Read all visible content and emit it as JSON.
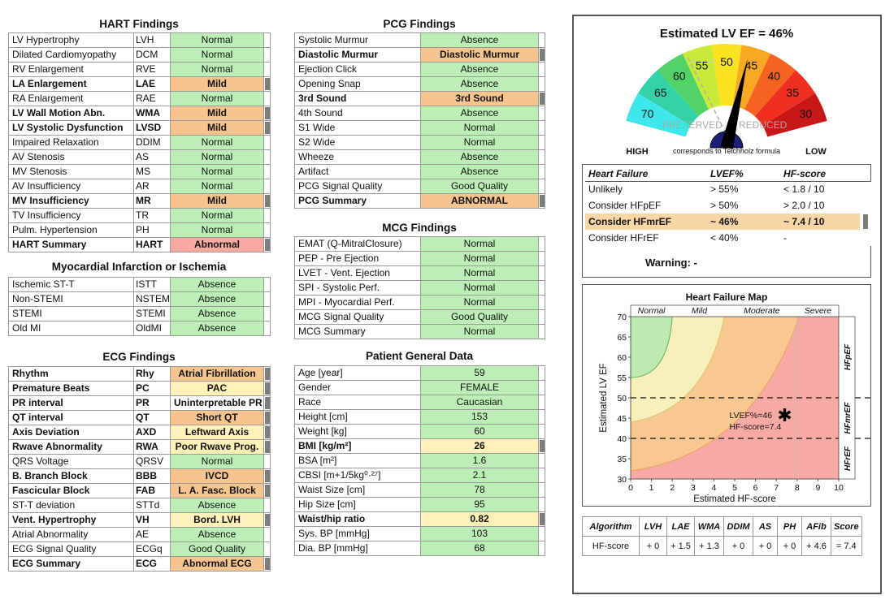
{
  "hart": {
    "title": "HART Findings",
    "rows": [
      {
        "name": "LV Hypertrophy",
        "abbr": "LVH",
        "value": "Normal",
        "status": "normal",
        "flag": false
      },
      {
        "name": "Dilated Cardiomyopathy",
        "abbr": "DCM",
        "value": "Normal",
        "status": "normal",
        "flag": false
      },
      {
        "name": "RV Enlargement",
        "abbr": "RVE",
        "value": "Normal",
        "status": "normal",
        "flag": false
      },
      {
        "name": "LA Enlargement",
        "abbr": "LAE",
        "value": "Mild",
        "status": "abn",
        "flag": true
      },
      {
        "name": "RA Enlargement",
        "abbr": "RAE",
        "value": "Normal",
        "status": "normal",
        "flag": false
      },
      {
        "name": "LV Wall Motion Abn.",
        "abbr": "WMA",
        "value": "Mild",
        "status": "abn",
        "flag": true
      },
      {
        "name": "LV Systolic Dysfunction",
        "abbr": "LVSD",
        "value": "Mild",
        "status": "abn",
        "flag": true
      },
      {
        "name": "Impaired Relaxation",
        "abbr": "DDIM",
        "value": "Normal",
        "status": "normal",
        "flag": false
      },
      {
        "name": "AV Stenosis",
        "abbr": "AS",
        "value": "Normal",
        "status": "normal",
        "flag": false
      },
      {
        "name": "MV Stenosis",
        "abbr": "MS",
        "value": "Normal",
        "status": "normal",
        "flag": false
      },
      {
        "name": "AV Insufficiency",
        "abbr": "AR",
        "value": "Normal",
        "status": "normal",
        "flag": false
      },
      {
        "name": "MV Insufficiency",
        "abbr": "MR",
        "value": "Mild",
        "status": "abn",
        "flag": true
      },
      {
        "name": "TV Insufficiency",
        "abbr": "TR",
        "value": "Normal",
        "status": "normal",
        "flag": false
      },
      {
        "name": "Pulm. Hypertension",
        "abbr": "PH",
        "value": "Normal",
        "status": "normal",
        "flag": false
      },
      {
        "name": "HART Summary",
        "abbr": "HART",
        "value": "Abnormal",
        "status": "red",
        "flag": true
      }
    ]
  },
  "mi": {
    "title": "Myocardial Infarction or Ischemia",
    "rows": [
      {
        "name": "Ischemic ST-T",
        "abbr": "ISTT",
        "value": "Absence",
        "status": "normal",
        "flag": false
      },
      {
        "name": "Non-STEMI",
        "abbr": "NSTEMI",
        "value": "Absence",
        "status": "normal",
        "flag": false
      },
      {
        "name": "STEMI",
        "abbr": "STEMI",
        "value": "Absence",
        "status": "normal",
        "flag": false
      },
      {
        "name": "Old MI",
        "abbr": "OldMI",
        "value": "Absence",
        "status": "normal",
        "flag": false
      }
    ]
  },
  "ecg": {
    "title": "ECG Findings",
    "rows": [
      {
        "name": "Rhythm",
        "abbr": "Rhy",
        "value": "Atrial Fibrillation",
        "status": "abn",
        "flag": true
      },
      {
        "name": "Premature Beats",
        "abbr": "PC",
        "value": "PAC",
        "status": "mild",
        "flag": true
      },
      {
        "name": "PR interval",
        "abbr": "PR",
        "value": "Uninterpretable PR",
        "status": "white",
        "flag": true
      },
      {
        "name": "QT interval",
        "abbr": "QT",
        "value": "Short QT",
        "status": "abn",
        "flag": true
      },
      {
        "name": "Axis Deviation",
        "abbr": "AXD",
        "value": "Leftward Axis",
        "status": "mild",
        "flag": true
      },
      {
        "name": "Rwave Abnormality",
        "abbr": "RWA",
        "value": "Poor Rwave Prog.",
        "status": "mild",
        "flag": true
      },
      {
        "name": "QRS Voltage",
        "abbr": "QRSV",
        "value": "Normal",
        "status": "normal",
        "flag": false
      },
      {
        "name": "B. Branch Block",
        "abbr": "BBB",
        "value": "IVCD",
        "status": "abn",
        "flag": true
      },
      {
        "name": "Fascicular Block",
        "abbr": "FAB",
        "value": "L. A. Fasc. Block",
        "status": "abn",
        "flag": true
      },
      {
        "name": "ST-T deviation",
        "abbr": "STTd",
        "value": "Absence",
        "status": "normal",
        "flag": false
      },
      {
        "name": "Vent. Hypertrophy",
        "abbr": "VH",
        "value": "Bord. LVH",
        "status": "mild",
        "flag": true
      },
      {
        "name": "Atrial Abnormality",
        "abbr": "AE",
        "value": "Absence",
        "status": "normal",
        "flag": false
      },
      {
        "name": "ECG Signal Quality",
        "abbr": "ECGq",
        "value": "Good Quality",
        "status": "normal",
        "flag": false
      },
      {
        "name": "ECG Summary",
        "abbr": "ECG",
        "value": "Abnormal ECG",
        "status": "abn",
        "flag": true
      }
    ]
  },
  "pcg": {
    "title": "PCG Findings",
    "rows": [
      {
        "name": "Systolic Murmur",
        "value": "Absence",
        "status": "normal",
        "flag": false
      },
      {
        "name": "Diastolic Murmur",
        "value": "Diastolic Murmur",
        "status": "abn",
        "flag": true
      },
      {
        "name": "Ejection Click",
        "value": "Absence",
        "status": "normal",
        "flag": false
      },
      {
        "name": "Opening Snap",
        "value": "Absence",
        "status": "normal",
        "flag": false
      },
      {
        "name": "3rd Sound",
        "value": "3rd Sound",
        "status": "abn",
        "flag": true
      },
      {
        "name": "4th Sound",
        "value": "Absence",
        "status": "normal",
        "flag": false
      },
      {
        "name": "S1 Wide",
        "value": "Normal",
        "status": "normal",
        "flag": false
      },
      {
        "name": "S2 Wide",
        "value": "Normal",
        "status": "normal",
        "flag": false
      },
      {
        "name": "Wheeze",
        "value": "Absence",
        "status": "normal",
        "flag": false
      },
      {
        "name": "Artifact",
        "value": "Absence",
        "status": "normal",
        "flag": false
      },
      {
        "name": "PCG Signal Quality",
        "value": "Good Quality",
        "status": "normal",
        "flag": false
      },
      {
        "name": "PCG Summary",
        "value": "ABNORMAL",
        "status": "abn",
        "flag": true
      }
    ]
  },
  "mcg": {
    "title": "MCG Findings",
    "rows": [
      {
        "name": "EMAT (Q-MitralClosure)",
        "value": "Normal",
        "status": "normal",
        "flag": false
      },
      {
        "name": "PEP - Pre Ejection",
        "value": "Normal",
        "status": "normal",
        "flag": false
      },
      {
        "name": "LVET - Vent. Ejection",
        "value": "Normal",
        "status": "normal",
        "flag": false
      },
      {
        "name": "SPI - Systolic Perf.",
        "value": "Normal",
        "status": "normal",
        "flag": false
      },
      {
        "name": "MPI - Myocardial Perf.",
        "value": "Normal",
        "status": "normal",
        "flag": false
      },
      {
        "name": "MCG Signal Quality",
        "value": "Good Quality",
        "status": "normal",
        "flag": false
      },
      {
        "name": "MCG Summary",
        "value": "Normal",
        "status": "normal",
        "flag": false
      }
    ]
  },
  "patient": {
    "title": "Patient General Data",
    "rows": [
      {
        "name": "Age [year]",
        "value": "59",
        "status": "normal",
        "flag": false
      },
      {
        "name": "Gender",
        "value": "FEMALE",
        "status": "normal",
        "flag": false
      },
      {
        "name": "Race",
        "value": "Caucasian",
        "status": "normal",
        "flag": false
      },
      {
        "name": "Height [cm]",
        "value": "153",
        "status": "normal",
        "flag": false
      },
      {
        "name": "Weight [kg]",
        "value": "60",
        "status": "normal",
        "flag": false
      },
      {
        "name": "BMI [kg/m²]",
        "value": "26",
        "status": "mild",
        "flag": true
      },
      {
        "name": "BSA [m²]",
        "value": "1.6",
        "status": "normal",
        "flag": false
      },
      {
        "name": "CBSI [m+1/5kg⁰·²⁷]",
        "value": "2.1",
        "status": "normal",
        "flag": false
      },
      {
        "name": "Waist Size [cm]",
        "value": "78",
        "status": "normal",
        "flag": false
      },
      {
        "name": "Hip Size [cm]",
        "value": "95",
        "status": "normal",
        "flag": false
      },
      {
        "name": "Waist/hip ratio",
        "value": "0.82",
        "status": "mild",
        "flag": true
      },
      {
        "name": "Sys. BP [mmHg]",
        "value": "103",
        "status": "normal",
        "flag": false
      },
      {
        "name": "Dia. BP [mmHg]",
        "value": "68",
        "status": "normal",
        "flag": false
      }
    ]
  },
  "gauge": {
    "title": "Estimated LV EF = 46%",
    "value": 46,
    "ticks": [
      "70",
      "65",
      "60",
      "55",
      "50",
      "45",
      "40",
      "35",
      "30"
    ],
    "tick_colors": [
      "#3fe6ea",
      "#33d2a8",
      "#52d36a",
      "#c8ea3a",
      "#f9e31f",
      "#f8a821",
      "#f46420",
      "#ee2f22",
      "#c81717"
    ],
    "preserved_label": "PRESERVED",
    "reduced_label": "REDUCED",
    "high_label": "HIGH",
    "low_label": "LOW",
    "note": "corresponds to Teichholz formula"
  },
  "hf_table": {
    "headers": [
      "Heart Failure",
      "LVEF%",
      "HF-score"
    ],
    "rows": [
      {
        "label": "Unlikely",
        "lvef": "> 55%",
        "score": "< 1.8 / 10",
        "highlight": false
      },
      {
        "label": "Consider HFpEF",
        "lvef": "> 50%",
        "score": "> 2.0 / 10",
        "highlight": false
      },
      {
        "label": "Consider HFmrEF",
        "lvef": "~ 46%",
        "score": "~ 7.4 / 10",
        "highlight": true
      },
      {
        "label": "Consider HFrEF",
        "lvef": "< 40%",
        "score": "-",
        "highlight": false
      }
    ],
    "warning": "Warning: -"
  },
  "chart_data": {
    "type": "scatter",
    "title": "Heart Failure Map",
    "xlabel": "Estimated HF-score",
    "ylabel": "Estimated LV EF",
    "xlim": [
      0,
      10
    ],
    "ylim": [
      30,
      70
    ],
    "xticks": [
      0,
      1,
      2,
      3,
      4,
      5,
      6,
      7,
      8,
      9,
      10
    ],
    "yticks": [
      30,
      35,
      40,
      45,
      50,
      55,
      60,
      65,
      70
    ],
    "top_labels": [
      {
        "text": "Normal",
        "x": 1
      },
      {
        "text": "Mild",
        "x": 3.3
      },
      {
        "text": "Moderate",
        "x": 6.3
      },
      {
        "text": "Severe",
        "x": 9
      }
    ],
    "right_labels": [
      {
        "text": "HFpEF",
        "y": 60
      },
      {
        "text": "HFmrEF",
        "y": 45
      },
      {
        "text": "HFrEF",
        "y": 35
      }
    ],
    "hlines": [
      50,
      40
    ],
    "point": {
      "x": 7.4,
      "y": 46
    },
    "annotation_lines": [
      "LVEF%=46",
      "HF-score=7.4"
    ]
  },
  "algo": {
    "headers": [
      "Algorithm",
      "LVH",
      "LAE",
      "WMA",
      "DDIM",
      "AS",
      "PH",
      "AFib",
      "Score"
    ],
    "values": [
      "HF-score",
      "+ 0",
      "+ 1.5",
      "+ 1.3",
      "+ 0",
      "+ 0",
      "+ 0",
      "+ 4.6",
      "= 7.4"
    ]
  }
}
